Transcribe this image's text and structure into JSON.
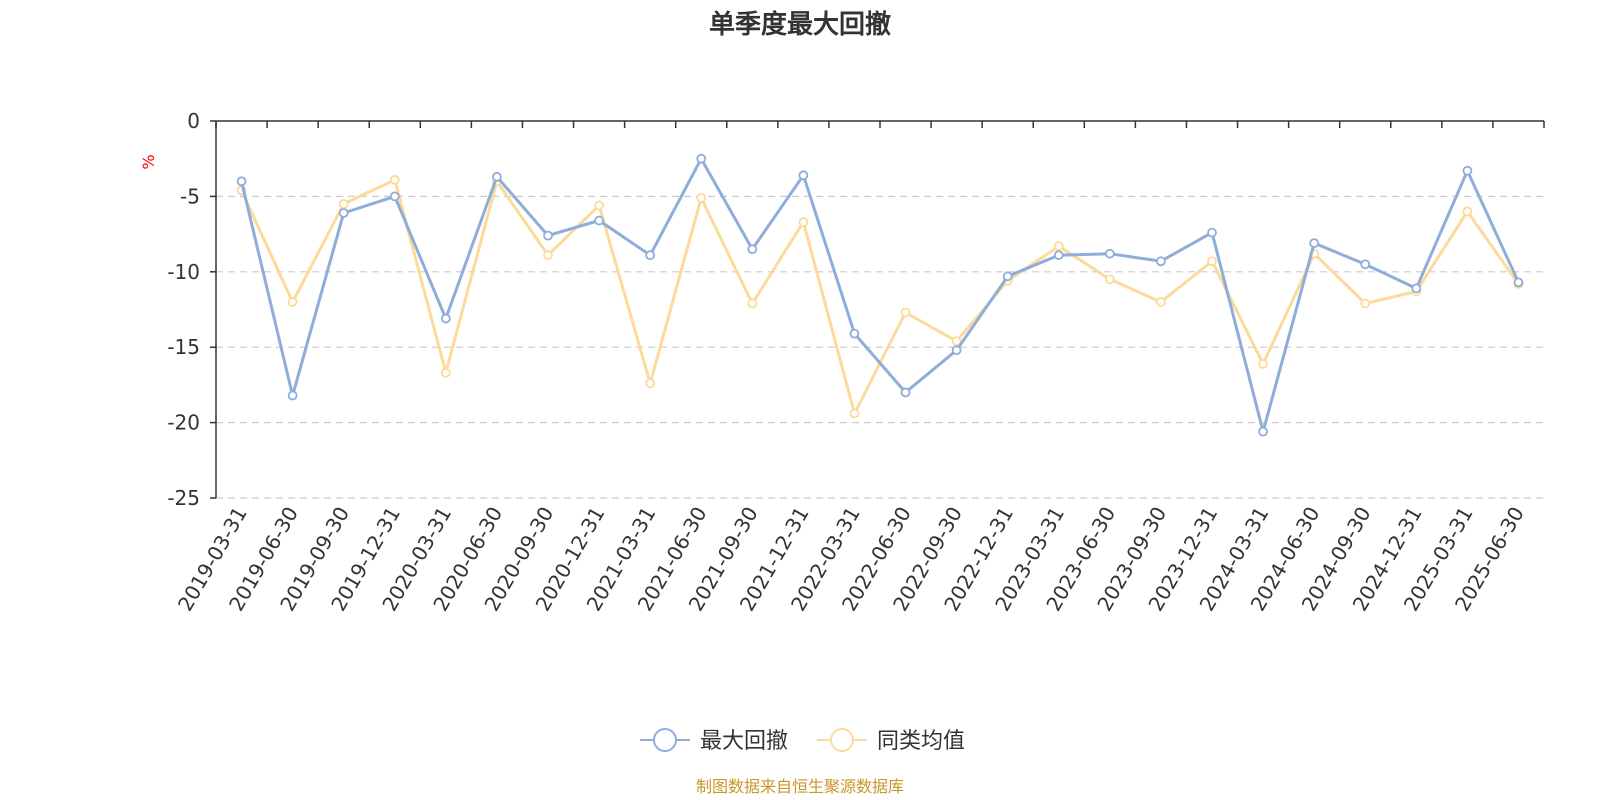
{
  "chart_data": {
    "type": "line",
    "title": "单季度最大回撤",
    "ylabel": "%",
    "ylim": [
      -25,
      0
    ],
    "yticks": [
      "0",
      "-5",
      "-10",
      "-15",
      "-20",
      "-25"
    ],
    "y_tick_values": [
      0,
      -5,
      -10,
      -15,
      -20,
      -25
    ],
    "grid": true,
    "legend_position": "bottom",
    "categories": [
      "2019-03-31",
      "2019-06-30",
      "2019-09-30",
      "2019-12-31",
      "2020-03-31",
      "2020-06-30",
      "2020-09-30",
      "2020-12-31",
      "2021-03-31",
      "2021-06-30",
      "2021-09-30",
      "2021-12-31",
      "2022-03-31",
      "2022-06-30",
      "2022-09-30",
      "2022-12-31",
      "2023-03-31",
      "2023-06-30",
      "2023-09-30",
      "2023-12-31",
      "2024-03-31",
      "2024-06-30",
      "2024-09-30",
      "2024-12-31",
      "2025-03-31",
      "2025-06-30"
    ],
    "series": [
      {
        "name": "最大回撤",
        "color": "#8EADDA",
        "values": [
          -4.0,
          -18.2,
          -6.1,
          -5.0,
          -13.1,
          -3.7,
          -7.6,
          -6.6,
          -8.9,
          -2.5,
          -8.5,
          -3.6,
          -14.1,
          -18.0,
          -15.2,
          -10.3,
          -8.9,
          -8.8,
          -9.3,
          -7.4,
          -20.6,
          -8.1,
          -9.5,
          -11.1,
          -3.3,
          -10.7
        ]
      },
      {
        "name": "同类均值",
        "color": "#FCDA9A",
        "values": [
          -4.6,
          -12.0,
          -5.5,
          -3.9,
          -16.7,
          -4.0,
          -8.9,
          -5.6,
          -17.4,
          -5.1,
          -12.1,
          -6.7,
          -19.4,
          -12.7,
          -14.6,
          -10.6,
          -8.3,
          -10.5,
          -12.0,
          -9.3,
          -16.1,
          -8.8,
          -12.1,
          -11.3,
          -6.0,
          -10.8
        ]
      }
    ]
  },
  "source_text": "制图数据来自恒生聚源数据库",
  "colors": {
    "axis": "#333333",
    "grid": "#CCCCCC",
    "unit": "#FF0000",
    "source": "#C8962A"
  }
}
